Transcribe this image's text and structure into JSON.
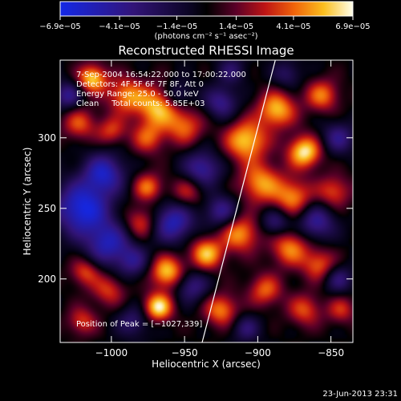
{
  "chart_data": {
    "type": "heatmap",
    "title": "Reconstructed RHESSI Image",
    "xlabel": "Heliocentric X (arcsec)",
    "ylabel": "Heliocentric Y (arcsec)",
    "xlim": [
      -1035,
      -835
    ],
    "ylim": [
      155,
      355
    ],
    "x_ticks": [
      -1000,
      -950,
      -900,
      -850
    ],
    "x_tick_labels": [
      "−1000",
      "−950",
      "−900",
      "−850"
    ],
    "y_ticks": [
      200,
      250,
      300
    ],
    "y_tick_labels": [
      "200",
      "250",
      "300"
    ],
    "colorbar": {
      "min": -6.9e-05,
      "max": 6.9e-05,
      "ticks": [
        -6.9e-05,
        -4.1e-05,
        -1.4e-05,
        1.4e-05,
        4.1e-05,
        6.9e-05
      ],
      "tick_labels": [
        "−6.9e−05",
        "−4.1e−05",
        "−1.4e−05",
        "1.4e−05",
        "4.1e−05",
        "6.9e−05"
      ],
      "units": "(photons cm⁻² s⁻¹ asec⁻²)"
    },
    "annotations": [
      "7-Sep-2004 16:54:22.000 to 17:00:22.000",
      "Detectors: 4F 5F 6F 7F 8F, Att 0",
      "Energy Range: 25.0 - 50.0 keV",
      "Clean     Total counts: 5.85E+03"
    ],
    "peak_label": "Position of Peak = [−1027,339]",
    "limb_line": {
      "x": [
        -938,
        -888
      ],
      "y": [
        155,
        355
      ]
    },
    "blobs": [
      {
        "x": -1013,
        "y": 342,
        "v": 0.9,
        "s": 7
      },
      {
        "x": -990,
        "y": 330,
        "v": 0.7,
        "s": 9
      },
      {
        "x": -968,
        "y": 322,
        "v": 0.85,
        "s": 10
      },
      {
        "x": -950,
        "y": 308,
        "v": 0.6,
        "s": 9
      },
      {
        "x": -975,
        "y": 300,
        "v": 0.55,
        "s": 8
      },
      {
        "x": -1022,
        "y": 310,
        "v": 0.55,
        "s": 8
      },
      {
        "x": -1000,
        "y": 305,
        "v": 0.5,
        "s": 7
      },
      {
        "x": -908,
        "y": 298,
        "v": 0.9,
        "s": 10
      },
      {
        "x": -887,
        "y": 320,
        "v": 0.85,
        "s": 9
      },
      {
        "x": -868,
        "y": 290,
        "v": 1.0,
        "s": 8
      },
      {
        "x": -856,
        "y": 330,
        "v": 0.65,
        "s": 8
      },
      {
        "x": -898,
        "y": 268,
        "v": 0.75,
        "s": 10
      },
      {
        "x": -876,
        "y": 258,
        "v": 0.7,
        "s": 9
      },
      {
        "x": -848,
        "y": 262,
        "v": 0.55,
        "s": 8
      },
      {
        "x": -975,
        "y": 265,
        "v": 0.65,
        "s": 7
      },
      {
        "x": -980,
        "y": 240,
        "v": 0.55,
        "s": 8
      },
      {
        "x": -948,
        "y": 262,
        "v": 0.45,
        "s": 8
      },
      {
        "x": -962,
        "y": 205,
        "v": 0.9,
        "s": 8
      },
      {
        "x": -935,
        "y": 218,
        "v": 0.85,
        "s": 8
      },
      {
        "x": -912,
        "y": 232,
        "v": 0.75,
        "s": 9
      },
      {
        "x": -878,
        "y": 222,
        "v": 0.7,
        "s": 9
      },
      {
        "x": -858,
        "y": 210,
        "v": 0.6,
        "s": 8
      },
      {
        "x": -968,
        "y": 180,
        "v": 1.0,
        "s": 7
      },
      {
        "x": -1002,
        "y": 192,
        "v": 0.5,
        "s": 8
      },
      {
        "x": -1018,
        "y": 205,
        "v": 0.55,
        "s": 7
      },
      {
        "x": -1020,
        "y": 170,
        "v": 0.5,
        "s": 7
      },
      {
        "x": -925,
        "y": 178,
        "v": 0.7,
        "s": 8
      },
      {
        "x": -895,
        "y": 192,
        "v": 0.6,
        "s": 8
      },
      {
        "x": -868,
        "y": 178,
        "v": 0.55,
        "s": 8
      },
      {
        "x": -843,
        "y": 178,
        "v": 0.45,
        "s": 7
      },
      {
        "x": -1020,
        "y": 250,
        "v": -1.0,
        "s": 13
      },
      {
        "x": -1005,
        "y": 275,
        "v": -0.8,
        "s": 10
      },
      {
        "x": -1002,
        "y": 225,
        "v": -0.75,
        "s": 11
      },
      {
        "x": -958,
        "y": 240,
        "v": -0.8,
        "s": 10
      },
      {
        "x": -938,
        "y": 278,
        "v": -0.7,
        "s": 9
      },
      {
        "x": -925,
        "y": 248,
        "v": -0.6,
        "s": 8
      },
      {
        "x": -955,
        "y": 330,
        "v": -0.5,
        "s": 7
      },
      {
        "x": -925,
        "y": 325,
        "v": -0.6,
        "s": 8
      },
      {
        "x": -918,
        "y": 348,
        "v": -0.4,
        "s": 7
      },
      {
        "x": -860,
        "y": 240,
        "v": -0.65,
        "s": 9
      },
      {
        "x": -845,
        "y": 300,
        "v": -0.55,
        "s": 8
      },
      {
        "x": -888,
        "y": 240,
        "v": -0.5,
        "s": 7
      },
      {
        "x": -945,
        "y": 195,
        "v": -0.55,
        "s": 8
      },
      {
        "x": -985,
        "y": 212,
        "v": -0.5,
        "s": 8
      },
      {
        "x": -985,
        "y": 170,
        "v": -0.45,
        "s": 8
      },
      {
        "x": -908,
        "y": 165,
        "v": -0.45,
        "s": 7
      },
      {
        "x": -845,
        "y": 200,
        "v": -0.5,
        "s": 7
      },
      {
        "x": -1030,
        "y": 330,
        "v": -0.6,
        "s": 7
      },
      {
        "x": -880,
        "y": 345,
        "v": -0.4,
        "s": 7
      }
    ]
  },
  "footer": {
    "timestamp": "23-Jun-2013 23:31"
  }
}
